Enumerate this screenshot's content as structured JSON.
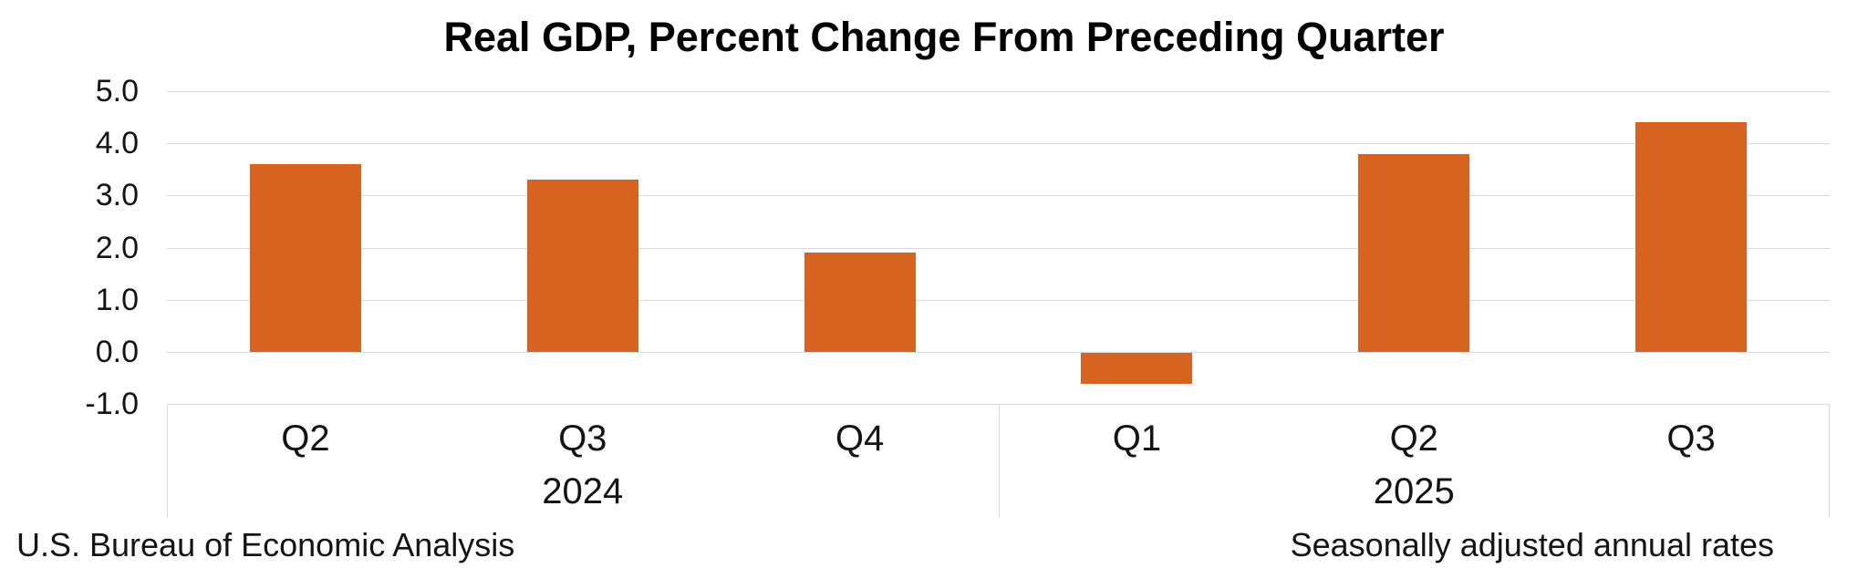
{
  "chart_data": {
    "type": "bar",
    "title": "Real GDP, Percent Change From Preceding Quarter",
    "categories": [
      "Q2 2024",
      "Q3 2024",
      "Q4 2024",
      "Q1 2025",
      "Q2 2025",
      "Q3 2025"
    ],
    "values": [
      3.6,
      3.3,
      1.9,
      -0.6,
      3.8,
      4.4
    ],
    "category_groups": [
      {
        "year": "2024",
        "quarters": [
          "Q2",
          "Q3",
          "Q4"
        ]
      },
      {
        "year": "2025",
        "quarters": [
          "Q1",
          "Q2",
          "Q3"
        ]
      }
    ],
    "ylim": [
      -1.0,
      5.0
    ],
    "y_tick_labels": [
      "5.0",
      "4.0",
      "3.0",
      "2.0",
      "1.0",
      "0.0",
      "-1.0"
    ],
    "grid": true,
    "legend": "none",
    "bar_color": "#D6631F",
    "gridline_color": "#D9D9D9"
  },
  "footers": {
    "left": "U.S. Bureau of Economic Analysis",
    "right": "Seasonally adjusted annual rates"
  }
}
